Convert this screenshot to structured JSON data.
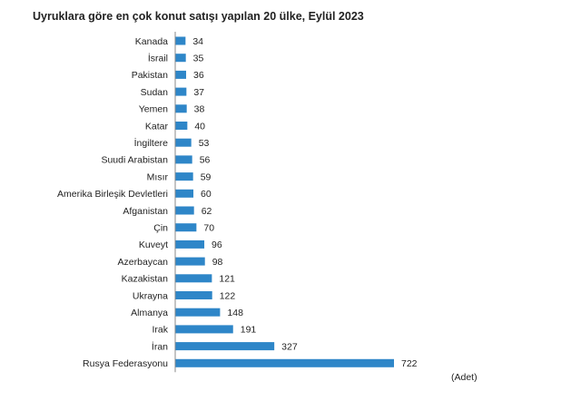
{
  "chart_data": {
    "type": "bar",
    "orientation": "horizontal",
    "title": "Uyruklara göre en çok konut satışı yapılan 20 ülke, Eylül 2023",
    "unit": "(Adet)",
    "bar_color": "#2e86c8",
    "categories": [
      "Kanada",
      "İsrail",
      "Pakistan",
      "Sudan",
      "Yemen",
      "Katar",
      "İngiltere",
      "Suudi Arabistan",
      "Mısır",
      "Amerika Birleşik Devletleri",
      "Afganistan",
      "Çin",
      "Kuveyt",
      "Azerbaycan",
      "Kazakistan",
      "Ukrayna",
      "Almanya",
      "Irak",
      "İran",
      "Rusya Federasyonu"
    ],
    "values": [
      34,
      35,
      36,
      37,
      38,
      40,
      53,
      56,
      59,
      60,
      62,
      70,
      96,
      98,
      121,
      122,
      148,
      191,
      327,
      722
    ],
    "xlim": [
      0,
      730
    ],
    "grid": false,
    "legend": "none"
  }
}
